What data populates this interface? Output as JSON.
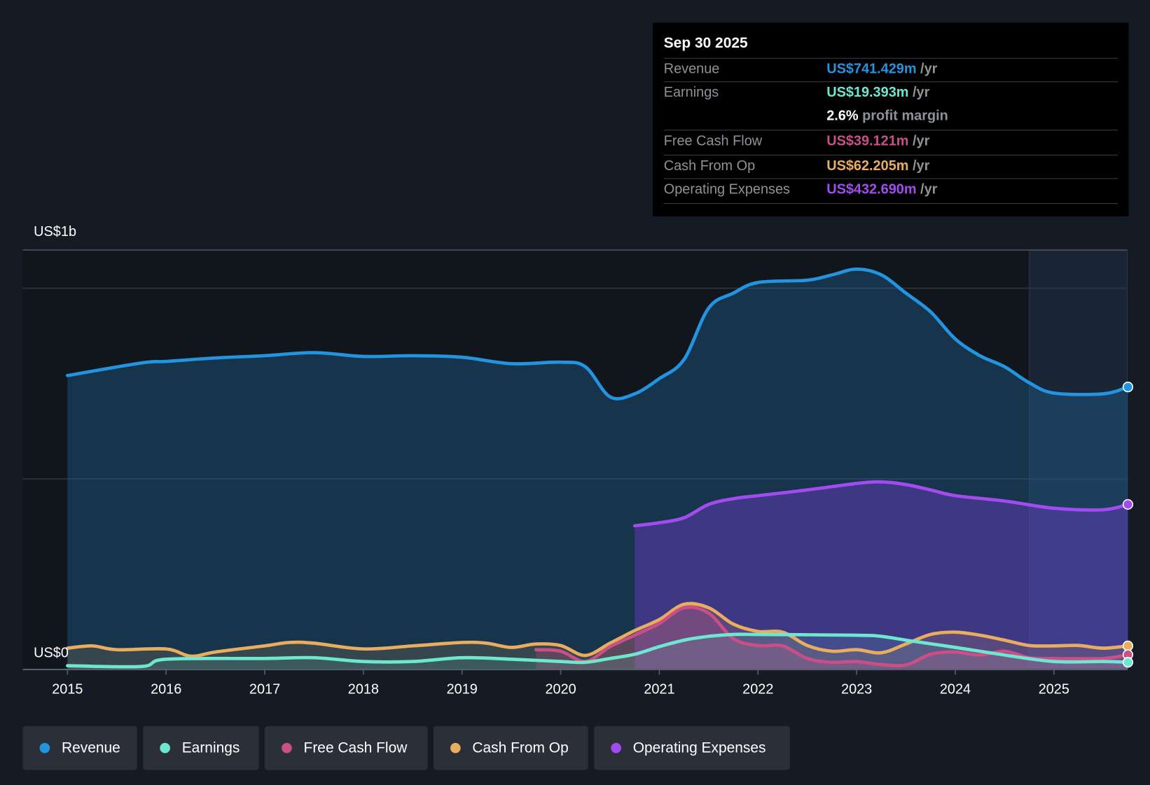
{
  "tooltip": {
    "date": "Sep 30 2025",
    "rows": [
      {
        "label": "Revenue",
        "value": "US$741.429m",
        "unit": "/yr",
        "color": "#2394df"
      },
      {
        "label": "Earnings",
        "value": "US$19.393m",
        "unit": "/yr",
        "color": "#6ee7d0"
      },
      {
        "label": "",
        "value": "2.6%",
        "unit": "profit margin",
        "color": "#ffffff"
      },
      {
        "label": "Free Cash Flow",
        "value": "US$39.121m",
        "unit": "/yr",
        "color": "#c94f86"
      },
      {
        "label": "Cash From Op",
        "value": "US$62.205m",
        "unit": "/yr",
        "color": "#e8ad5e"
      },
      {
        "label": "Operating Expenses",
        "value": "US$432.690m",
        "unit": "/yr",
        "color": "#a24cf0"
      }
    ]
  },
  "chart_data": {
    "type": "area",
    "ylabel_top": "US$1b",
    "ylabel_bottom": "US$0",
    "ylim": [
      0,
      1100
    ],
    "gridlines": [
      500,
      1000
    ],
    "xlim": [
      2014.55,
      2025.75
    ],
    "xticks": [
      "2015",
      "2016",
      "2017",
      "2018",
      "2019",
      "2020",
      "2021",
      "2022",
      "2023",
      "2024",
      "2025"
    ],
    "units": "US$ millions",
    "series": [
      {
        "name": "Revenue",
        "color": "#2394df",
        "x": [
          2015,
          2015.75,
          2016,
          2016.5,
          2017,
          2017.5,
          2018,
          2018.5,
          2019,
          2019.5,
          2020,
          2020.25,
          2020.5,
          2020.75,
          2021,
          2021.25,
          2021.5,
          2021.75,
          2022,
          2022.5,
          2022.75,
          2023,
          2023.25,
          2023.5,
          2023.75,
          2024,
          2024.25,
          2024.5,
          2024.75,
          2025,
          2025.5,
          2025.75
        ],
        "values": [
          771,
          804,
          808,
          817,
          823,
          831,
          821,
          823,
          819,
          802,
          806,
          794,
          715,
          723,
          763,
          813,
          948,
          987,
          1015,
          1021,
          1035,
          1050,
          1035,
          987,
          938,
          867,
          823,
          794,
          752,
          725,
          723,
          741
        ]
      },
      {
        "name": "Earnings",
        "color": "#6ee7d0",
        "x": [
          2015,
          2015.75,
          2016,
          2017,
          2017.5,
          2018,
          2018.5,
          2019,
          2019.5,
          2020,
          2020.25,
          2020.5,
          2020.75,
          2021,
          2021.25,
          2021.5,
          2021.75,
          2022,
          2023,
          2023.25,
          2023.5,
          2024,
          2024.5,
          2025,
          2025.5,
          2025.75
        ],
        "values": [
          10,
          8,
          27,
          29,
          31,
          21,
          21,
          31,
          27,
          21,
          19,
          29,
          40,
          60,
          77,
          87,
          92,
          92,
          90,
          87,
          77,
          58,
          38,
          21,
          21,
          19
        ]
      },
      {
        "name": "Free Cash Flow",
        "color": "#c94f86",
        "x": [
          2019.75,
          2020,
          2020.25,
          2020.5,
          2020.75,
          2021,
          2021.25,
          2021.5,
          2021.75,
          2022,
          2022.25,
          2022.5,
          2022.75,
          2023,
          2023.25,
          2023.5,
          2023.75,
          2024,
          2024.25,
          2024.5,
          2024.75,
          2025,
          2025.5,
          2025.75
        ],
        "values": [
          52,
          48,
          21,
          60,
          90,
          121,
          162,
          148,
          81,
          63,
          62,
          29,
          19,
          21,
          13,
          12,
          40,
          46,
          38,
          48,
          31,
          29,
          29,
          39
        ]
      },
      {
        "name": "Cash From Op",
        "color": "#e8ad5e",
        "x": [
          2015,
          2015.25,
          2015.5,
          2016,
          2016.25,
          2016.5,
          2017,
          2017.25,
          2017.5,
          2018,
          2018.5,
          2019,
          2019.25,
          2019.5,
          2019.75,
          2020,
          2020.25,
          2020.5,
          2020.75,
          2021,
          2021.25,
          2021.5,
          2021.75,
          2022,
          2022.25,
          2022.5,
          2022.75,
          2023,
          2023.25,
          2023.5,
          2023.75,
          2024,
          2024.25,
          2024.5,
          2024.75,
          2025,
          2025.25,
          2025.5,
          2025.75
        ],
        "values": [
          56,
          62,
          52,
          54,
          35,
          46,
          62,
          71,
          69,
          54,
          62,
          71,
          69,
          58,
          67,
          63,
          37,
          69,
          102,
          131,
          171,
          162,
          119,
          100,
          98,
          63,
          48,
          52,
          44,
          67,
          92,
          98,
          90,
          77,
          63,
          62,
          63,
          56,
          62
        ]
      },
      {
        "name": "Operating Expenses",
        "color": "#a24cf0",
        "x": [
          2020.75,
          2021,
          2021.25,
          2021.5,
          2021.75,
          2022,
          2022.5,
          2023,
          2023.25,
          2023.5,
          2023.75,
          2024,
          2024.5,
          2025,
          2025.5,
          2025.75
        ],
        "values": [
          377,
          385,
          398,
          433,
          448,
          456,
          471,
          488,
          492,
          485,
          471,
          456,
          442,
          423,
          419,
          433
        ]
      }
    ],
    "highlight_from": 2024.75,
    "legend": "bottom-left"
  }
}
